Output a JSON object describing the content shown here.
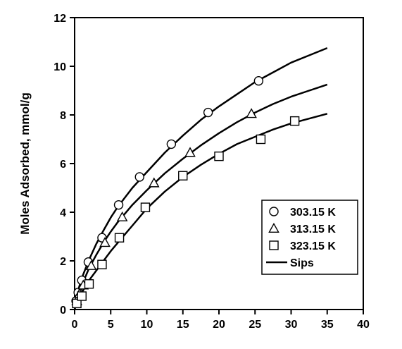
{
  "chart_data": {
    "type": "scatter",
    "title": "",
    "xlabel": "",
    "ylabel": "Moles Adsorbed, mmol/g",
    "xlim": [
      0,
      40
    ],
    "ylim": [
      0,
      12
    ],
    "xticks": [
      "0",
      "5",
      "10",
      "15",
      "20",
      "25",
      "30",
      "35",
      "40"
    ],
    "yticks": [
      "0",
      "2",
      "4",
      "6",
      "8",
      "10",
      "12"
    ],
    "grid": false,
    "legend_position": "lower-right",
    "series": [
      {
        "name": "303.15 K",
        "marker": "circle",
        "x": [
          0.2,
          0.5,
          1.0,
          1.9,
          3.8,
          6.1,
          9.0,
          13.4,
          18.5,
          25.5
        ],
        "y": [
          0.35,
          0.7,
          1.2,
          1.95,
          2.95,
          4.3,
          5.45,
          6.8,
          8.1,
          9.4
        ]
      },
      {
        "name": "313.15 K",
        "marker": "triangle",
        "x": [
          0.3,
          0.7,
          1.2,
          2.3,
          4.2,
          6.6,
          11.0,
          16.0,
          24.5
        ],
        "y": [
          0.35,
          0.65,
          1.0,
          1.8,
          2.75,
          3.8,
          5.2,
          6.45,
          8.05
        ]
      },
      {
        "name": "323.15 K",
        "marker": "square",
        "x": [
          0.3,
          1.0,
          2.0,
          3.8,
          6.2,
          9.8,
          15.0,
          20.0,
          25.8,
          30.5
        ],
        "y": [
          0.25,
          0.55,
          1.05,
          1.85,
          2.95,
          4.2,
          5.5,
          6.3,
          7.0,
          7.75
        ]
      }
    ],
    "fit_label": "Sips",
    "fit_curves": [
      {
        "for": "303.15 K",
        "x": [
          0,
          0.5,
          1,
          2,
          3,
          4,
          5,
          6,
          8,
          10,
          12.5,
          15,
          17.5,
          20,
          22.5,
          25,
          27.5,
          30,
          32.5,
          35
        ],
        "y": [
          0,
          0.8,
          1.3,
          2.05,
          2.7,
          3.25,
          3.78,
          4.23,
          5.0,
          5.65,
          6.45,
          7.15,
          7.8,
          8.35,
          8.85,
          9.35,
          9.75,
          10.15,
          10.45,
          10.75
        ]
      },
      {
        "for": "313.15 K",
        "x": [
          0,
          0.5,
          1,
          2,
          3,
          4,
          5,
          6,
          8,
          10,
          12.5,
          15,
          17.5,
          20,
          22.5,
          25,
          27.5,
          30,
          32.5,
          35
        ],
        "y": [
          0,
          0.6,
          1.0,
          1.7,
          2.25,
          2.75,
          3.2,
          3.6,
          4.3,
          4.9,
          5.6,
          6.2,
          6.75,
          7.25,
          7.7,
          8.1,
          8.45,
          8.75,
          9.0,
          9.25
        ]
      },
      {
        "for": "323.15 K",
        "x": [
          0,
          0.5,
          1,
          2,
          3,
          4,
          5,
          6,
          8,
          10,
          12.5,
          15,
          17.5,
          20,
          22.5,
          25,
          27.5,
          30,
          32.5,
          35
        ],
        "y": [
          0,
          0.4,
          0.7,
          1.2,
          1.6,
          2.0,
          2.4,
          2.75,
          3.45,
          4.15,
          4.85,
          5.45,
          5.95,
          6.4,
          6.8,
          7.1,
          7.4,
          7.65,
          7.85,
          8.05
        ]
      }
    ]
  }
}
